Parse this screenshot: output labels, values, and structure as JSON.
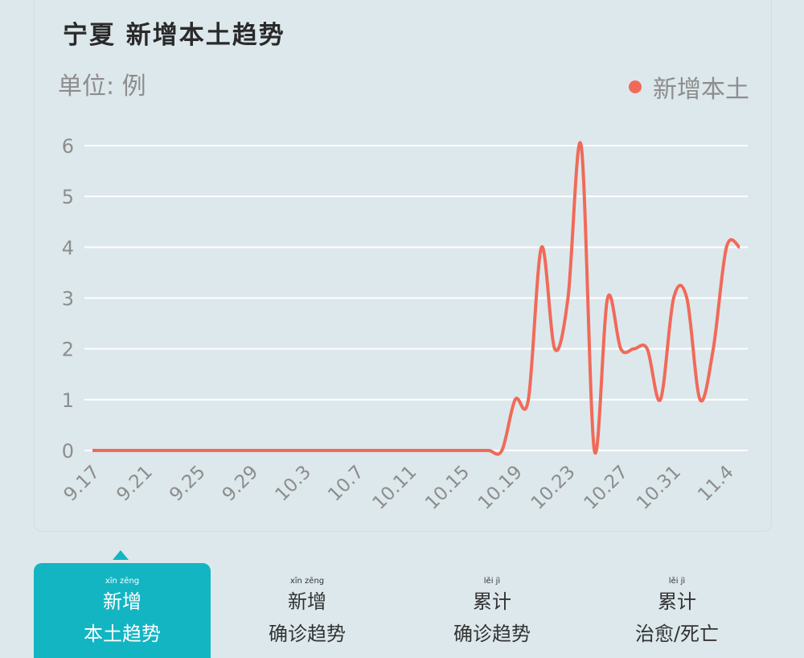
{
  "title": "宁夏 新增本土趋势",
  "unit_label": "单位: 例",
  "colors": {
    "series": "#f06a5a",
    "grid": "#ffffff",
    "accent": "#13b5c3"
  },
  "chart_data": {
    "type": "line",
    "title": "宁夏 新增本土趋势",
    "ylabel": "单位: 例",
    "ylim": [
      0,
      6
    ],
    "y_ticks": [
      "0",
      "1",
      "2",
      "3",
      "4",
      "5",
      "6"
    ],
    "x_ticks": [
      "9.17",
      "9.21",
      "9.25",
      "9.29",
      "10.3",
      "10.7",
      "10.11",
      "10.15",
      "10.19",
      "10.23",
      "10.27",
      "10.31",
      "11.4"
    ],
    "x": [
      "9.17",
      "9.18",
      "9.19",
      "9.20",
      "9.21",
      "9.22",
      "9.23",
      "9.24",
      "9.25",
      "9.26",
      "9.27",
      "9.28",
      "9.29",
      "9.30",
      "10.1",
      "10.2",
      "10.3",
      "10.4",
      "10.5",
      "10.6",
      "10.7",
      "10.8",
      "10.9",
      "10.10",
      "10.11",
      "10.12",
      "10.13",
      "10.14",
      "10.15",
      "10.16",
      "10.17",
      "10.18",
      "10.19",
      "10.20",
      "10.21",
      "10.22",
      "10.23",
      "10.24",
      "10.25",
      "10.26",
      "10.27",
      "10.28",
      "10.29",
      "10.30",
      "10.31",
      "11.1",
      "11.2",
      "11.3",
      "11.4",
      "11.5"
    ],
    "series": [
      {
        "name": "新增本土",
        "values": [
          0,
          0,
          0,
          0,
          0,
          0,
          0,
          0,
          0,
          0,
          0,
          0,
          0,
          0,
          0,
          0,
          0,
          0,
          0,
          0,
          0,
          0,
          0,
          0,
          0,
          0,
          0,
          0,
          0,
          0,
          0,
          0,
          1,
          1,
          4,
          2,
          3,
          6,
          0,
          3,
          2,
          2,
          2,
          1,
          3,
          3,
          1,
          2,
          4,
          4
        ]
      }
    ],
    "legend": "top-right",
    "grid": true
  },
  "tabs": [
    {
      "pinyin": "xīn zēng",
      "line1": "新增",
      "line2": "本土趋势",
      "active": true
    },
    {
      "pinyin": "xīn zēng",
      "line1": "新增",
      "line2": "确诊趋势",
      "active": false
    },
    {
      "pinyin": "lěi jì",
      "line1": "累计",
      "line2": "确诊趋势",
      "active": false
    },
    {
      "pinyin": "lěi jì",
      "line1": "累计",
      "line2": "治愈/死亡",
      "active": false
    }
  ]
}
